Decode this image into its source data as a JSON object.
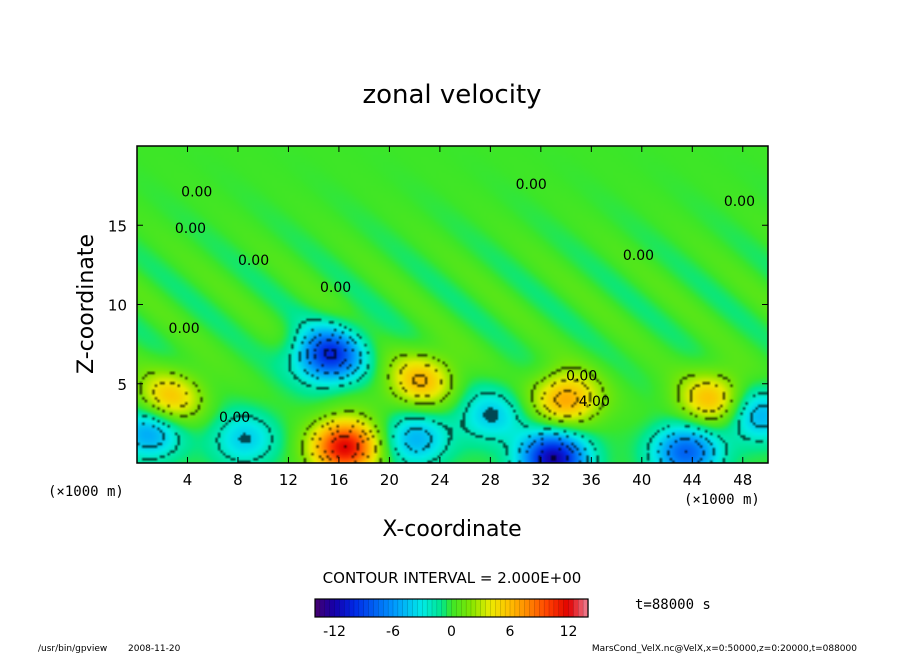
{
  "chart_data": {
    "type": "heatmap",
    "title": "zonal velocity",
    "xlabel": "X-coordinate",
    "ylabel": "Z-coordinate",
    "x_unit_left": "(×1000 m)",
    "x_unit_right": "(×1000 m)",
    "xlim": [
      0,
      50
    ],
    "ylim": [
      0,
      20
    ],
    "x_ticks": [
      4,
      8,
      12,
      16,
      20,
      24,
      28,
      32,
      36,
      40,
      44,
      48
    ],
    "y_ticks": [
      5,
      10,
      15
    ],
    "contour_interval_text": "CONTOUR INTERVAL = 2.000E+00",
    "contour_labels": [
      "0.00",
      "0.00",
      "0.00",
      "0.00",
      "0.00",
      "0.00",
      "0.00",
      "0.00",
      "0.00",
      "0.00",
      "4.00"
    ],
    "time_text": "t=88000 s",
    "colorbar": {
      "min": -14,
      "max": 14,
      "ticks": [
        "-12",
        "-6",
        "0",
        "6",
        "12"
      ]
    },
    "features": [
      {
        "kind": "max",
        "x": 16.5,
        "z": 1.0,
        "value": 12
      },
      {
        "kind": "min",
        "x": 15.2,
        "z": 6.8,
        "value": -10
      },
      {
        "kind": "max",
        "x": 22.5,
        "z": 5.2,
        "value": 6
      },
      {
        "kind": "max",
        "x": 34.0,
        "z": 4.0,
        "value": 7
      },
      {
        "kind": "min",
        "x": 33.0,
        "z": 0.3,
        "value": -12
      },
      {
        "kind": "max",
        "x": 45.5,
        "z": 4.0,
        "value": 6
      },
      {
        "kind": "max",
        "x": 2.5,
        "z": 4.0,
        "value": 6
      },
      {
        "kind": "min",
        "x": 1.0,
        "z": 2.0,
        "value": -6
      },
      {
        "kind": "min",
        "x": 22.0,
        "z": 1.5,
        "value": -5
      },
      {
        "kind": "min",
        "x": 43.5,
        "z": 0.7,
        "value": -8
      },
      {
        "kind": "min",
        "x": 49.2,
        "z": 3.0,
        "value": -5
      },
      {
        "kind": "min",
        "x": 8.5,
        "z": 1.5,
        "value": -4
      },
      {
        "kind": "min",
        "x": 28.0,
        "z": 3.0,
        "value": -4
      }
    ]
  },
  "footer": {
    "program": "/usr/bin/gpview",
    "date": "2008-11-20",
    "source": "MarsCond_VelX.nc@VelX,x=0:50000,z=0:20000,t=088000"
  }
}
